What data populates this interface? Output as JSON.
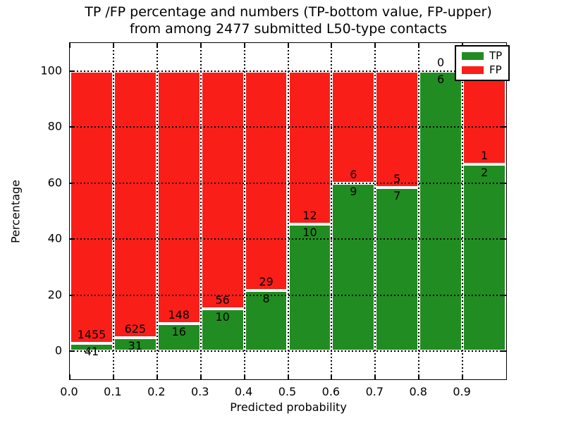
{
  "figure": {
    "title_line1": "TP /FP percentage and numbers (TP-bottom value, FP-upper)",
    "title_line2": "from among 2477 submitted L50-type contacts",
    "xlabel": "Predicted probability",
    "ylabel": "Percentage"
  },
  "chart_data": {
    "type": "bar",
    "stacked": true,
    "normalized": "each bin scaled so TP%+FP% = 100",
    "title": "TP /FP percentage and numbers (TP-bottom value, FP-upper) from among 2477 submitted L50-type contacts",
    "xlabel": "Predicted probability",
    "ylabel": "Percentage",
    "total_contacts": 2477,
    "bin_width": 0.1,
    "bin_starts": [
      0.0,
      0.1,
      0.2,
      0.3,
      0.4,
      0.5,
      0.6,
      0.7,
      0.8,
      0.9
    ],
    "series": [
      {
        "name": "TP",
        "color": "#218c21",
        "values": [
          41,
          31,
          16,
          10,
          8,
          10,
          9,
          7,
          6,
          2
        ]
      },
      {
        "name": "FP",
        "color": "#fa1e19",
        "values": [
          1455,
          625,
          148,
          56,
          29,
          12,
          6,
          5,
          0,
          1
        ]
      }
    ],
    "tp_percent_per_bin": [
      2.74,
      4.73,
      9.76,
      15.15,
      21.62,
      45.45,
      60.0,
      58.33,
      100.0,
      66.67
    ],
    "x_tick_labels": [
      "0.0",
      "0.1",
      "0.2",
      "0.3",
      "0.4",
      "0.5",
      "0.6",
      "0.7",
      "0.8",
      "0.9"
    ],
    "y_tick_labels": [
      "0",
      "20",
      "40",
      "60",
      "80",
      "100"
    ],
    "xlim": [
      0.0,
      1.0
    ],
    "ylim": [
      -10,
      110
    ],
    "grid": "dotted, both axes, drawn above bars",
    "legend_position": "upper right",
    "bar_edge_color": "#ffffff",
    "axis_color": "#000000",
    "background_color": "#ffffff"
  }
}
